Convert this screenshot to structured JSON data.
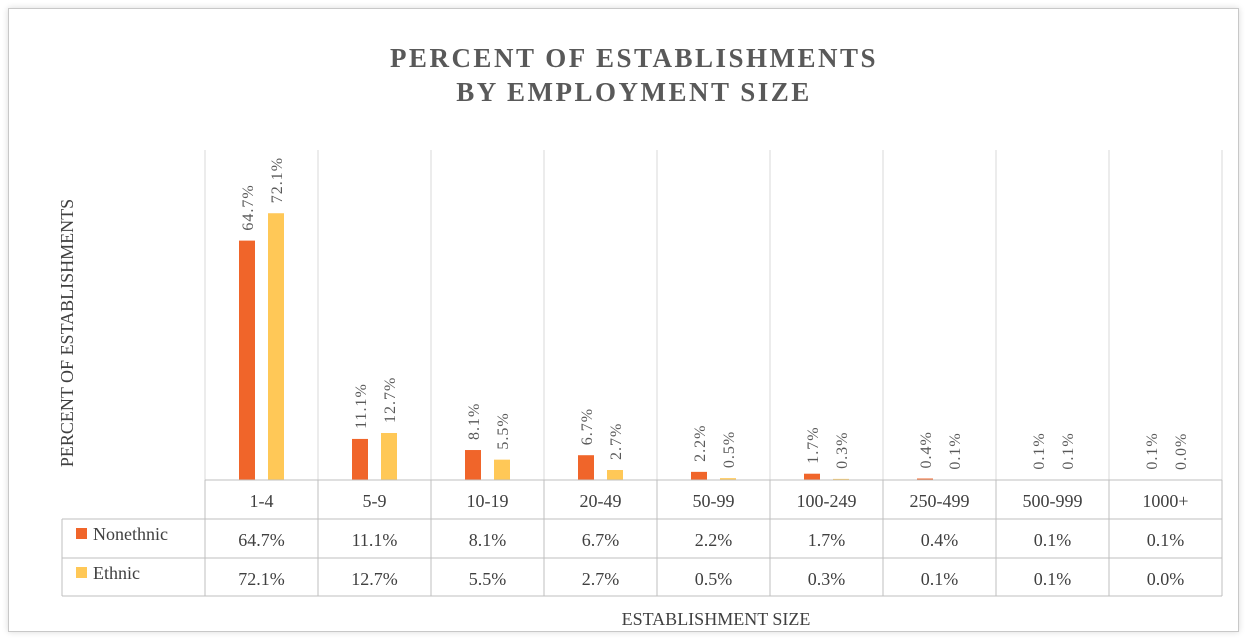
{
  "chart_data": {
    "type": "bar",
    "title_lines": [
      "PERCENT OF ESTABLISHMENTS",
      "BY EMPLOYMENT SIZE"
    ],
    "xlabel": "ESTABLISHMENT SIZE",
    "ylabel": "PERCENT OF ESTABLISHMENTS",
    "ylim": [
      0,
      80
    ],
    "grid": "vertical",
    "legend": "data-table",
    "categories": [
      "1-4",
      "5-9",
      "10-19",
      "20-49",
      "50-99",
      "100-249",
      "250-499",
      "500-999",
      "1000+"
    ],
    "series": [
      {
        "name": "Nonethnic",
        "color": "#F0652A",
        "values": [
          64.7,
          11.1,
          8.1,
          6.7,
          2.2,
          1.7,
          0.4,
          0.1,
          0.1
        ],
        "labels": [
          "64.7%",
          "11.1%",
          "8.1%",
          "6.7%",
          "2.2%",
          "1.7%",
          "0.4%",
          "0.1%",
          "0.1%"
        ]
      },
      {
        "name": "Ethnic",
        "color": "#FFC857",
        "values": [
          72.1,
          12.7,
          5.5,
          2.7,
          0.5,
          0.3,
          0.1,
          0.1,
          0.0
        ],
        "labels": [
          "72.1%",
          "12.7%",
          "5.5%",
          "2.7%",
          "0.5%",
          "0.3%",
          "0.1%",
          "0.1%",
          "0.0%"
        ]
      }
    ]
  }
}
